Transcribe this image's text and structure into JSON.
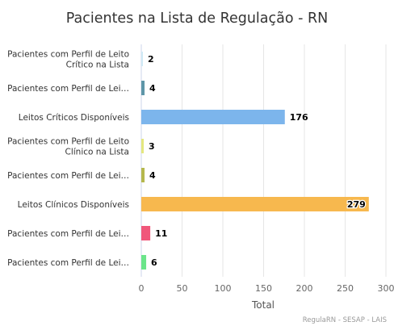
{
  "chart_data": {
    "type": "bar",
    "orientation": "horizontal",
    "title": "Pacientes na Lista de Regulação - RN",
    "xlabel": "Total",
    "ylabel": "",
    "categories": [
      "Pacientes com Perfil de Leito Crítico na Lista",
      "Pacientes com Perfil de Lei…",
      "Leitos Críticos Disponíveis",
      "Pacientes com Perfil de Leito Clínico na Lista",
      "Pacientes com Perfil de Lei…",
      "Leitos Clínicos Disponíveis",
      "Pacientes com Perfil de Lei…",
      "Pacientes com Perfil de Lei…"
    ],
    "values": [
      2,
      4,
      176,
      3,
      4,
      279,
      11,
      6
    ],
    "data_labels": [
      "2",
      "4",
      "176",
      "3",
      "4",
      "279",
      "11",
      "6"
    ],
    "bar_colors": [
      "#cfe9f5",
      "#5e96a8",
      "#7cb5ec",
      "#e4e77f",
      "#b5b84d",
      "#f7b84e",
      "#f0577b",
      "#6be58a"
    ],
    "xlim": [
      0,
      300
    ],
    "xticks": [
      0,
      50,
      100,
      150,
      200,
      250,
      300
    ],
    "grid": true,
    "legend": "none",
    "credits": "RegulaRN - SESAP - LAIS"
  }
}
